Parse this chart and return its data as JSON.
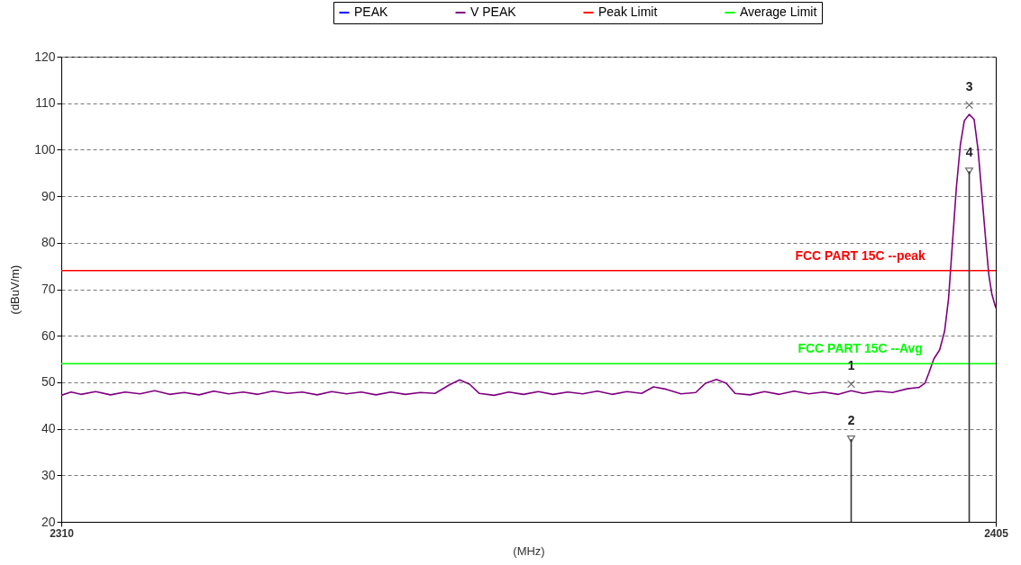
{
  "chart_data": {
    "type": "line",
    "xlabel": "(MHz)",
    "ylabel": "(dBuV/m)",
    "xlim": [
      2310,
      2405
    ],
    "xticks": [
      2310,
      2405
    ],
    "ylim": [
      20,
      120
    ],
    "yticks": [
      20,
      30,
      40,
      50,
      60,
      70,
      80,
      90,
      100,
      110,
      120
    ],
    "grid": "y",
    "legend": "top",
    "line_style": "solid",
    "series": [
      {
        "name": "PEAK",
        "color": "#0000ff"
      },
      {
        "name": "V PEAK",
        "color": "#800080",
        "x": [
          2310,
          2311,
          2312,
          2313.5,
          2315,
          2316.5,
          2318,
          2319.5,
          2321,
          2322.5,
          2324,
          2325.5,
          2327,
          2328.5,
          2330,
          2331.5,
          2333,
          2334.5,
          2336,
          2337.5,
          2339,
          2340.5,
          2342,
          2343.5,
          2345,
          2346.5,
          2348,
          2349.5,
          2350.5,
          2351.5,
          2352.5,
          2354,
          2355.5,
          2357,
          2358.5,
          2360,
          2361.5,
          2363,
          2364.5,
          2366,
          2367.5,
          2369,
          2370.2,
          2371.5,
          2373,
          2374.5,
          2375.5,
          2376.6,
          2377.6,
          2378.5,
          2380,
          2381.5,
          2383,
          2384.5,
          2386,
          2387.5,
          2389,
          2390.3,
          2391.5,
          2393,
          2394.5,
          2396,
          2397.2,
          2397.8,
          2398.2,
          2398.7,
          2399.3,
          2399.8,
          2400.2,
          2400.6,
          2401,
          2401.4,
          2401.8,
          2402.3,
          2402.8,
          2403.2,
          2403.6,
          2404,
          2404.3,
          2404.6,
          2405
        ],
        "values": [
          47.2,
          47.9,
          47.4,
          48.0,
          47.3,
          47.9,
          47.5,
          48.2,
          47.4,
          47.8,
          47.3,
          48.1,
          47.5,
          47.9,
          47.4,
          48.1,
          47.6,
          47.9,
          47.3,
          48.0,
          47.5,
          47.9,
          47.3,
          47.9,
          47.4,
          47.8,
          47.6,
          49.5,
          50.5,
          49.6,
          47.6,
          47.2,
          47.9,
          47.4,
          48.0,
          47.4,
          47.9,
          47.5,
          48.1,
          47.4,
          48.0,
          47.6,
          49.0,
          48.5,
          47.5,
          47.8,
          49.8,
          50.6,
          49.8,
          47.6,
          47.3,
          48.0,
          47.4,
          48.1,
          47.5,
          47.9,
          47.4,
          48.2,
          47.6,
          48.1,
          47.8,
          48.6,
          48.9,
          49.8,
          52,
          55,
          57,
          61,
          68,
          80,
          92,
          101,
          106.2,
          107.6,
          106.5,
          100,
          90,
          80,
          73,
          69,
          66
        ]
      },
      {
        "name": "Peak Limit",
        "color": "#ff0000",
        "x": [
          2310,
          2405
        ],
        "values": [
          74,
          74
        ]
      },
      {
        "name": "Average Limit",
        "color": "#00ff00",
        "x": [
          2310,
          2405
        ],
        "values": [
          54,
          54
        ]
      },
      {
        "type": "scatter",
        "color": "#333333",
        "marker": "cross",
        "x": [
          2390.3,
          2402.3
        ],
        "values": [
          49.6,
          109.6
        ]
      },
      {
        "type": "lollipop",
        "color": "#333333",
        "marker": "triangle",
        "x": [
          2390.3,
          2402.3
        ],
        "values": [
          37.8,
          95.4
        ]
      }
    ],
    "annotations": [
      "FCC PART 15C --peak",
      "FCC PART 15C --Avg",
      "1",
      "2",
      "3",
      "4"
    ]
  }
}
